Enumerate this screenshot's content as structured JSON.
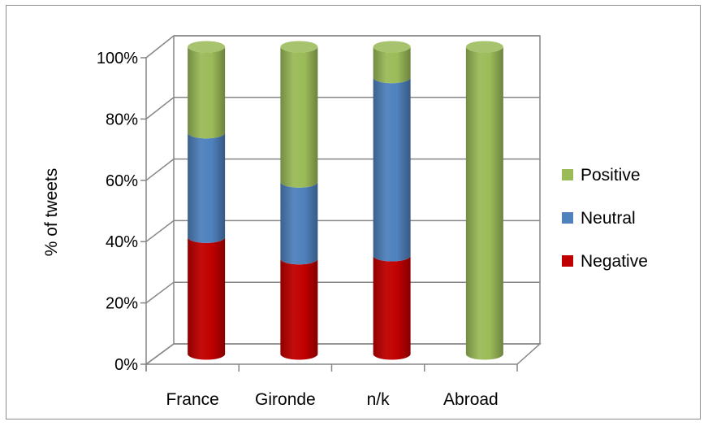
{
  "chart_data": {
    "type": "bar",
    "stacked": true,
    "percent_stacked": true,
    "style": "3d-cylinder",
    "title": "",
    "xlabel": "",
    "ylabel": "% of tweets",
    "ylim": [
      0,
      100
    ],
    "yticks": [
      "0%",
      "20%",
      "40%",
      "60%",
      "80%",
      "100%"
    ],
    "categories": [
      "France",
      "Gironde",
      "n/k",
      "Abroad"
    ],
    "series": [
      {
        "name": "Negative",
        "color": "#c00000",
        "values": [
          38,
          31,
          32,
          0
        ]
      },
      {
        "name": "Neutral",
        "color": "#4f81bd",
        "values": [
          34,
          25,
          58,
          0
        ]
      },
      {
        "name": "Positive",
        "color": "#9bbb59",
        "values": [
          28,
          44,
          10,
          100
        ]
      }
    ],
    "legend": {
      "position": "right",
      "order": [
        "Positive",
        "Neutral",
        "Negative"
      ]
    },
    "grid": true
  }
}
